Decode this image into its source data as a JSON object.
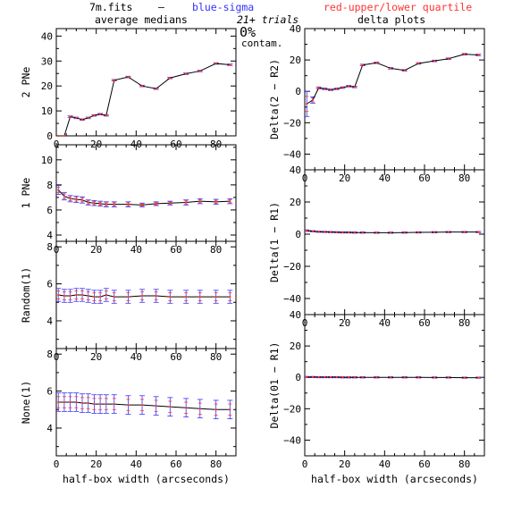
{
  "header": {
    "file": "7m.fits",
    "dash": "–",
    "blue_label": "blue-sigma",
    "red_label": "red-upper/lower quartile",
    "left_title": "average medians",
    "trials": "21+ trials",
    "right_title": "delta plots",
    "contam_pct": "0%",
    "contam_label": "contam."
  },
  "colors": {
    "line": "#000000",
    "sigma": "#3333ff",
    "quartile": "#ff3333"
  },
  "chart_data": [
    {
      "id": "2pne",
      "type": "line",
      "ylabel": "2 PNe",
      "xlabel": "",
      "xlim": [
        0,
        90
      ],
      "ylim": [
        0,
        43
      ],
      "xticks": [
        0,
        20,
        40,
        60,
        80
      ],
      "xticklabels": [
        "0",
        "20",
        "40",
        "60",
        "80"
      ],
      "yticks": [
        0,
        10,
        20,
        30,
        40
      ],
      "yticklabels": [
        "0",
        "10",
        "20",
        "30",
        "40"
      ],
      "x": [
        1,
        4,
        7,
        10,
        13,
        16,
        19,
        22,
        25,
        29,
        36,
        43,
        50,
        57,
        65,
        72,
        80,
        87
      ],
      "y": [
        0,
        0,
        7.7,
        7.2,
        6.5,
        7.2,
        8.2,
        8.7,
        8.2,
        22.3,
        23.6,
        20,
        18.9,
        23.2,
        24.9,
        26,
        29,
        28.5
      ],
      "err": [
        0,
        0,
        0.3,
        0.3,
        0.3,
        0.3,
        0.3,
        0.3,
        0.3,
        0.3,
        0.3,
        0.3,
        0.3,
        0.3,
        0.3,
        0.3,
        0.3,
        0.3
      ]
    },
    {
      "id": "1pne",
      "type": "line",
      "ylabel": "1 PNe",
      "xlabel": "",
      "xlim": [
        0,
        90
      ],
      "ylim": [
        3.5,
        11.2
      ],
      "xticks": [
        0,
        20,
        40,
        60,
        80
      ],
      "xticklabels": [
        "0",
        "20",
        "40",
        "60",
        "80"
      ],
      "yticks": [
        4,
        6,
        8,
        10
      ],
      "yticklabels": [
        "4",
        "6",
        "8",
        "10"
      ],
      "x": [
        1,
        4,
        7,
        10,
        13,
        16,
        19,
        22,
        25,
        29,
        36,
        43,
        50,
        57,
        65,
        72,
        80,
        87
      ],
      "y": [
        7.6,
        7.1,
        6.9,
        6.85,
        6.8,
        6.6,
        6.55,
        6.5,
        6.45,
        6.45,
        6.45,
        6.4,
        6.5,
        6.55,
        6.6,
        6.7,
        6.65,
        6.7
      ],
      "err": [
        0.35,
        0.3,
        0.25,
        0.25,
        0.25,
        0.2,
        0.2,
        0.2,
        0.2,
        0.2,
        0.2,
        0.15,
        0.15,
        0.15,
        0.2,
        0.2,
        0.2,
        0.2
      ]
    },
    {
      "id": "random1",
      "type": "line",
      "ylabel": "Random(1)",
      "xlabel": "",
      "xlim": [
        0,
        90
      ],
      "ylim": [
        2.5,
        8.3
      ],
      "xticks": [
        0,
        20,
        40,
        60,
        80
      ],
      "xticklabels": [
        "0",
        "20",
        "40",
        "60",
        "80"
      ],
      "yticks": [
        4,
        6,
        8
      ],
      "yticklabels": [
        "4",
        "6",
        "8"
      ],
      "x": [
        1,
        4,
        7,
        10,
        13,
        16,
        19,
        22,
        25,
        29,
        36,
        43,
        50,
        57,
        65,
        72,
        80,
        87
      ],
      "y": [
        5.4,
        5.35,
        5.35,
        5.4,
        5.4,
        5.35,
        5.3,
        5.3,
        5.4,
        5.3,
        5.3,
        5.35,
        5.35,
        5.3,
        5.3,
        5.3,
        5.3,
        5.3
      ],
      "err": [
        0.35,
        0.35,
        0.35,
        0.35,
        0.35,
        0.35,
        0.35,
        0.35,
        0.35,
        0.35,
        0.35,
        0.35,
        0.35,
        0.35,
        0.35,
        0.35,
        0.35,
        0.35
      ]
    },
    {
      "id": "none1",
      "type": "line",
      "ylabel": "None(1)",
      "xlabel": "half-box width (arcseconds)",
      "xlim": [
        0,
        90
      ],
      "ylim": [
        2.5,
        8.3
      ],
      "xticks": [
        0,
        20,
        40,
        60,
        80
      ],
      "xticklabels": [
        "0",
        "20",
        "40",
        "60",
        "80"
      ],
      "yticks": [
        4,
        6,
        8
      ],
      "yticklabels": [
        "4",
        "6",
        "8"
      ],
      "x": [
        1,
        4,
        7,
        10,
        13,
        16,
        19,
        22,
        25,
        29,
        36,
        43,
        50,
        57,
        65,
        72,
        80,
        87
      ],
      "y": [
        5.4,
        5.4,
        5.4,
        5.4,
        5.35,
        5.35,
        5.3,
        5.3,
        5.3,
        5.3,
        5.25,
        5.25,
        5.2,
        5.15,
        5.1,
        5.05,
        5.0,
        5.0
      ],
      "err": [
        0.5,
        0.5,
        0.5,
        0.5,
        0.5,
        0.5,
        0.5,
        0.5,
        0.5,
        0.5,
        0.5,
        0.5,
        0.5,
        0.5,
        0.5,
        0.5,
        0.5,
        0.5
      ]
    },
    {
      "id": "delta2",
      "type": "line",
      "ylabel": "Delta(2 − R2)",
      "xlabel": "",
      "xlim": [
        0,
        90
      ],
      "ylim": [
        -50,
        40
      ],
      "xticks": [
        0,
        20,
        40,
        60,
        80
      ],
      "xticklabels": [
        "0",
        "20",
        "40",
        "60",
        "80"
      ],
      "yticks": [
        -40,
        -20,
        0,
        20,
        40
      ],
      "yticklabels": [
        "−40",
        "−20",
        "0",
        "20",
        "40"
      ],
      "x": [
        1,
        4,
        7,
        10,
        13,
        16,
        19,
        22,
        25,
        29,
        36,
        43,
        50,
        57,
        65,
        72,
        80,
        87
      ],
      "y": [
        -8,
        -5.5,
        2.2,
        1.6,
        1.0,
        1.6,
        2.4,
        3.3,
        2.8,
        16.8,
        18.2,
        14.7,
        13.4,
        17.8,
        19.4,
        20.8,
        23.7,
        23.2
      ],
      "err": [
        8,
        2,
        0.6,
        0.5,
        0.5,
        0.5,
        0.5,
        0.5,
        0.5,
        0.5,
        0.5,
        0.5,
        0.5,
        0.5,
        0.5,
        0.5,
        0.5,
        0.5
      ]
    },
    {
      "id": "delta1",
      "type": "line",
      "ylabel": "Delta(1 − R1)",
      "xlabel": "",
      "xlim": [
        0,
        90
      ],
      "ylim": [
        -50,
        40
      ],
      "xticks": [
        0,
        20,
        40,
        60,
        80
      ],
      "xticklabels": [
        "0",
        "20",
        "40",
        "60",
        "80"
      ],
      "yticks": [
        -40,
        -20,
        0,
        20,
        40
      ],
      "yticklabels": [
        "−40",
        "−20",
        "0",
        "20",
        "40"
      ],
      "x": [
        1,
        4,
        7,
        10,
        13,
        16,
        19,
        22,
        25,
        29,
        36,
        43,
        50,
        57,
        65,
        72,
        80,
        87
      ],
      "y": [
        2.2,
        1.8,
        1.5,
        1.4,
        1.3,
        1.2,
        1.1,
        1.1,
        1.0,
        1.0,
        0.9,
        0.9,
        1.0,
        1.1,
        1.2,
        1.3,
        1.3,
        1.3
      ],
      "err": [
        0.5,
        0.4,
        0.4,
        0.4,
        0.4,
        0.4,
        0.4,
        0.4,
        0.4,
        0.4,
        0.4,
        0.4,
        0.4,
        0.4,
        0.4,
        0.4,
        0.4,
        0.4
      ]
    },
    {
      "id": "delta01",
      "type": "line",
      "ylabel": "Delta(01 − R1)",
      "xlabel": "half-box width (arcseconds)",
      "xlim": [
        0,
        90
      ],
      "ylim": [
        -50,
        40
      ],
      "xticks": [
        0,
        20,
        40,
        60,
        80
      ],
      "xticklabels": [
        "0",
        "20",
        "40",
        "60",
        "80"
      ],
      "yticks": [
        -40,
        -20,
        0,
        20,
        40
      ],
      "yticklabels": [
        "−40",
        "−20",
        "0",
        "20",
        "40"
      ],
      "x": [
        1,
        4,
        7,
        10,
        13,
        16,
        19,
        22,
        25,
        29,
        36,
        43,
        50,
        57,
        65,
        72,
        80,
        87
      ],
      "y": [
        0.2,
        0.2,
        0.1,
        0.1,
        0.1,
        0.1,
        0.0,
        0.0,
        0.0,
        0.0,
        0.0,
        0.0,
        0.0,
        0.0,
        -0.1,
        -0.1,
        -0.2,
        -0.2
      ],
      "err": [
        0.4,
        0.4,
        0.4,
        0.4,
        0.4,
        0.4,
        0.4,
        0.4,
        0.4,
        0.4,
        0.4,
        0.4,
        0.4,
        0.4,
        0.4,
        0.4,
        0.4,
        0.4
      ]
    }
  ]
}
